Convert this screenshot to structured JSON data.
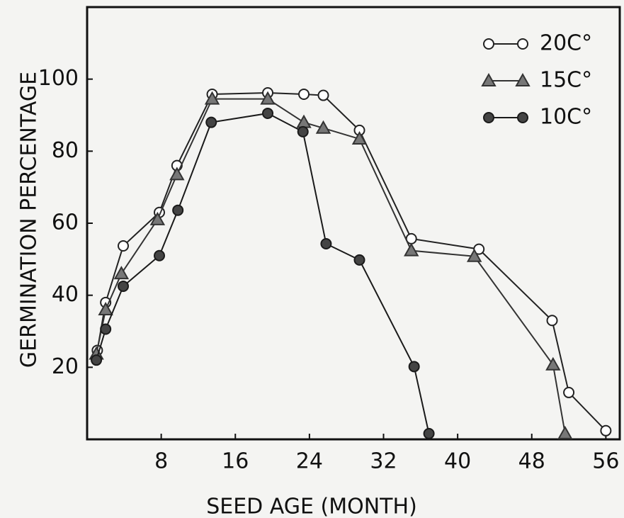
{
  "chart_data": {
    "type": "line",
    "x_label": "SEED AGE (MONTH)",
    "y_label": "GERMINATION   PERCENTAGE",
    "xlim": [
      0,
      57.5
    ],
    "xticks": [
      8,
      16,
      24,
      32,
      40,
      48,
      56
    ],
    "ylim": [
      0,
      120
    ],
    "yticks": [
      20,
      40,
      60,
      80,
      100
    ],
    "legend": "upper right",
    "series": [
      {
        "name": "20C°",
        "color": "#222222",
        "marker": "circle-open",
        "x": [
          1.1,
          2,
          3.9,
          7.8,
          9.7,
          13.5,
          19.5,
          23.4,
          25.5,
          29.4,
          35,
          42.3,
          50.2,
          52,
          56
        ],
        "values": [
          24.7,
          38,
          53.7,
          63,
          76,
          95.8,
          96.2,
          95.8,
          95.5,
          85.8,
          55.7,
          52.8,
          33,
          13,
          2.4
        ]
      },
      {
        "name": "15C°",
        "color": "#333333",
        "marker": "triangle",
        "x": [
          1,
          2,
          3.7,
          7.6,
          9.7,
          13.5,
          19.5,
          23.4,
          25.5,
          29.4,
          35,
          41.8,
          50.3,
          51.6
        ],
        "values": [
          23.7,
          36,
          46,
          61,
          73.5,
          94.5,
          94.5,
          88,
          86.4,
          83.4,
          52.4,
          50.8,
          20.7,
          1.6
        ]
      },
      {
        "name": "10C°",
        "color": "#1a1a1a",
        "marker": "circle-filled",
        "x": [
          1,
          2,
          3.9,
          7.8,
          9.8,
          13.4,
          19.5,
          23.3,
          25.8,
          29.4,
          35.3,
          36.9
        ],
        "values": [
          22,
          30.6,
          42.5,
          51,
          63.6,
          88,
          90.5,
          85.4,
          54.3,
          49.8,
          20.2,
          1.6
        ]
      }
    ]
  }
}
